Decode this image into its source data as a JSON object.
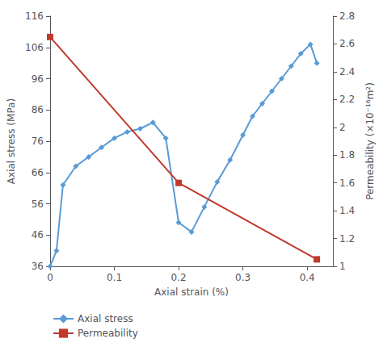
{
  "chart_data": {
    "type": "line",
    "xlabel": "Axial strain (%)",
    "ylabel": "Axial stress (MPa)",
    "y2label": "Permeability (×10⁻¹⁶m²)",
    "xlim": [
      0,
      0.44
    ],
    "xticks": [
      0,
      0.1,
      0.2,
      0.3,
      0.4
    ],
    "ylim": [
      36,
      116
    ],
    "yticks": [
      36,
      46,
      56,
      66,
      76,
      86,
      96,
      106,
      116
    ],
    "y2lim": [
      1.0,
      2.8
    ],
    "y2ticks": [
      1.0,
      1.2,
      1.4,
      1.6,
      1.8,
      2.0,
      2.2,
      2.4,
      2.6,
      2.8
    ],
    "grid": false,
    "legend": "lower left",
    "series": [
      {
        "name": "Axial stress",
        "color": "#5b9bd5",
        "marker": "diamond",
        "axis": "y",
        "x": [
          0.0,
          0.01,
          0.02,
          0.04,
          0.06,
          0.08,
          0.1,
          0.12,
          0.14,
          0.16,
          0.18,
          0.2,
          0.22,
          0.24,
          0.26,
          0.28,
          0.3,
          0.315,
          0.33,
          0.345,
          0.36,
          0.375,
          0.39,
          0.405,
          0.415
        ],
        "values": [
          36,
          41,
          62,
          68,
          71,
          74,
          77,
          79,
          80,
          82,
          77,
          50,
          47,
          55,
          63,
          70,
          78,
          84,
          88,
          92,
          96,
          100,
          104,
          107,
          101
        ]
      },
      {
        "name": "Permeability",
        "color": "#c0392b",
        "marker": "square",
        "axis": "y2",
        "x": [
          0.0,
          0.2,
          0.415
        ],
        "values": [
          2.65,
          1.6,
          1.05
        ]
      }
    ]
  }
}
